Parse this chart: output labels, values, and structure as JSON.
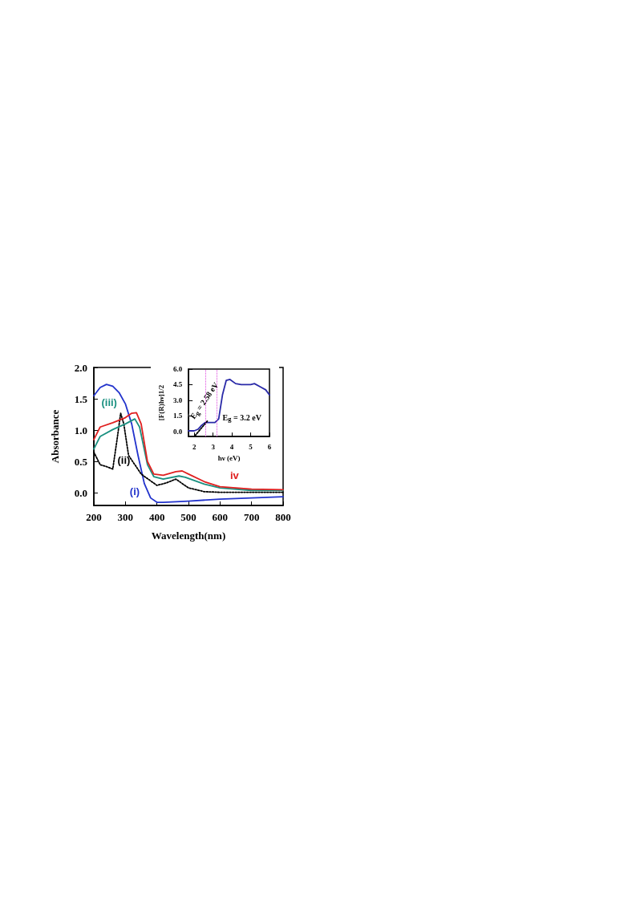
{
  "chart_data": [
    {
      "type": "line",
      "xlabel": "Wavelength(nm)",
      "ylabel": "Absorbance",
      "xlim": [
        200,
        800
      ],
      "xticks": [
        200,
        300,
        400,
        500,
        600,
        700,
        800
      ],
      "ylim": [
        -0.2,
        2.0
      ],
      "yticks": [
        {
          "value": 0,
          "label": "0.0"
        },
        {
          "value": 0.5,
          "label": "0.5"
        },
        {
          "value": 1,
          "label": "1.0"
        },
        {
          "value": 1.5,
          "label": "1.5"
        },
        {
          "value": 2,
          "label": "2.0"
        }
      ],
      "grid": false,
      "marker": "none",
      "series": [
        {
          "name": "(i)",
          "color": "#2233cc",
          "line_style": "solid",
          "x": [
            200,
            220,
            240,
            260,
            280,
            300,
            320,
            340,
            360,
            380,
            400,
            420,
            500,
            600,
            700,
            800
          ],
          "values": [
            1.55,
            1.68,
            1.73,
            1.7,
            1.6,
            1.42,
            1.1,
            0.6,
            0.15,
            -0.08,
            -0.15,
            -0.15,
            -0.13,
            -0.1,
            -0.08,
            -0.06
          ]
        },
        {
          "name": "(ii)",
          "color": "#000000",
          "line_style": "dotted",
          "x": [
            200,
            220,
            240,
            260,
            275,
            285,
            295,
            310,
            350,
            400,
            430,
            460,
            480,
            500,
            550,
            600,
            800
          ],
          "values": [
            0.65,
            0.45,
            0.42,
            0.38,
            0.9,
            1.27,
            1.1,
            0.6,
            0.3,
            0.12,
            0.16,
            0.22,
            0.15,
            0.08,
            0.02,
            0.01,
            0.01
          ]
        },
        {
          "name": "(iii)",
          "color": "#1a9080",
          "line_style": "solid",
          "x": [
            200,
            220,
            260,
            300,
            330,
            345,
            370,
            390,
            420,
            470,
            490,
            550,
            600,
            700,
            800
          ],
          "values": [
            0.7,
            0.9,
            1.01,
            1.1,
            1.18,
            1.05,
            0.45,
            0.26,
            0.22,
            0.27,
            0.25,
            0.14,
            0.08,
            0.04,
            0.04
          ]
        },
        {
          "name": "iv",
          "color": "#e02020",
          "line_style": "solid",
          "x": [
            200,
            220,
            260,
            300,
            320,
            335,
            350,
            370,
            390,
            420,
            460,
            480,
            500,
            550,
            600,
            700,
            800
          ],
          "values": [
            0.85,
            1.05,
            1.12,
            1.2,
            1.27,
            1.28,
            1.1,
            0.5,
            0.3,
            0.28,
            0.34,
            0.35,
            0.3,
            0.18,
            0.1,
            0.06,
            0.05
          ]
        }
      ]
    },
    {
      "type": "line",
      "xlabel": "hν (eV)",
      "ylabel": "[F(R)hν]1/2",
      "xlim": [
        1.7,
        6
      ],
      "xticks": [
        2,
        3,
        4,
        5,
        6
      ],
      "ylim": [
        -0.5,
        6.0
      ],
      "yticks": [
        {
          "value": 0,
          "label": "0.0"
        },
        {
          "value": 1.5,
          "label": "1.5"
        },
        {
          "value": 3,
          "label": "3.0"
        },
        {
          "value": 4.5,
          "label": "4.5"
        },
        {
          "value": 6,
          "label": "6.0"
        }
      ],
      "grid": false,
      "marker": "none",
      "series": [
        {
          "color": "#2a2aa8",
          "line_style": "solid",
          "x": [
            1.7,
            2.0,
            2.2,
            2.4,
            2.58,
            2.8,
            3.1,
            3.3,
            3.5,
            3.7,
            3.9,
            4.2,
            4.5,
            5.0,
            5.2,
            5.5,
            5.8,
            6.0
          ],
          "values": [
            0.05,
            0.05,
            0.2,
            0.6,
            0.85,
            0.85,
            0.85,
            1.2,
            3.5,
            4.9,
            5.0,
            4.6,
            4.5,
            4.5,
            4.6,
            4.3,
            4.0,
            3.5
          ]
        },
        {
          "color": "#000000",
          "line_style": "dotted",
          "x": [
            2.05,
            2.7
          ],
          "values": [
            -0.4,
            1.0
          ]
        }
      ],
      "ref_lines": [
        {
          "axis": "x",
          "value": 2.58,
          "color": "#dd44dd",
          "line_style": "dotted"
        },
        {
          "axis": "x",
          "value": 3.2,
          "color": "#dd44dd",
          "line_style": "dotted"
        }
      ],
      "annotations": [
        "E$_{g}$ = 2.58 eV",
        "E$_{g}$ = 3.2 eV"
      ]
    }
  ]
}
